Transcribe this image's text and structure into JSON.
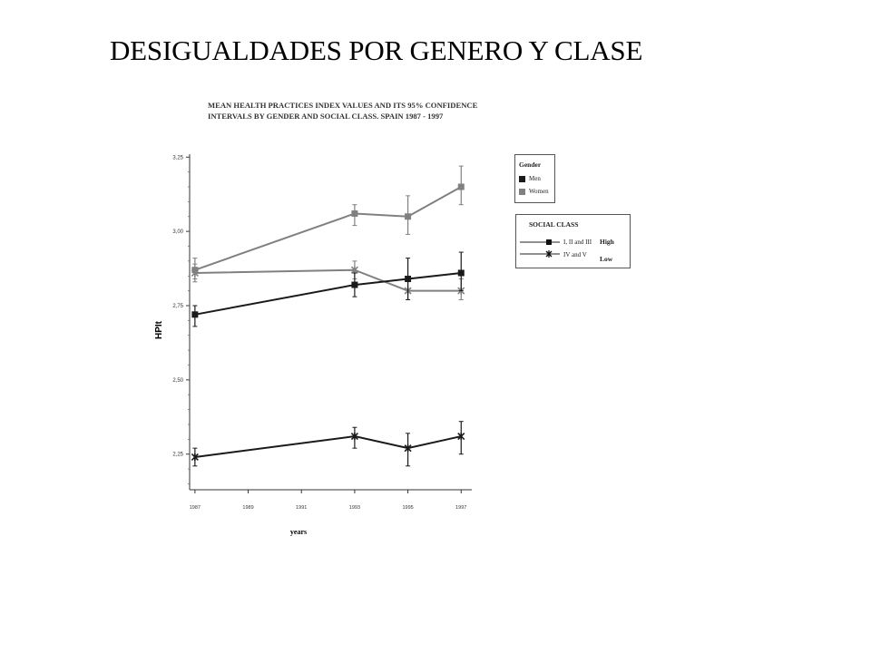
{
  "slide": {
    "title": "DESIGUALDADES POR GENERO Y CLASE"
  },
  "chart_data": {
    "type": "line",
    "title": "MEAN HEALTH PRACTICES INDEX VALUES AND ITS 95% CONFIDENCE INTERVALS BY GENDER AND SOCIAL CLASS. SPAIN 1987 - 1997",
    "xlabel": "years",
    "ylabel": "HPIt",
    "x_ticks": [
      "1987",
      "1989",
      "1991",
      "1993",
      "1995",
      "1997"
    ],
    "y_ticks": [
      "2,25",
      "2,50",
      "2,75",
      "3,00",
      "3,25"
    ],
    "ylim": [
      2.13,
      3.26
    ],
    "grid": false,
    "series": [
      {
        "gender": "Women",
        "social_class": "I, II and III",
        "color": "#808080",
        "marker": "square",
        "x": [
          1987,
          1993,
          1995,
          1997
        ],
        "y": [
          2.87,
          3.06,
          3.05,
          3.15
        ],
        "ci_low": [
          2.83,
          3.02,
          2.99,
          3.09
        ],
        "ci_high": [
          2.91,
          3.09,
          3.12,
          3.22
        ]
      },
      {
        "gender": "Women",
        "social_class": "IV and V",
        "color": "#808080",
        "marker": "star",
        "x": [
          1987,
          1993,
          1995,
          1997
        ],
        "y": [
          2.86,
          2.87,
          2.8,
          2.8
        ],
        "ci_low": [
          2.84,
          2.84,
          2.77,
          2.77
        ],
        "ci_high": [
          2.89,
          2.9,
          2.84,
          2.84
        ]
      },
      {
        "gender": "Men",
        "social_class": "I, II and III",
        "color": "#1a1a1a",
        "marker": "square",
        "x": [
          1987,
          1993,
          1995,
          1997
        ],
        "y": [
          2.72,
          2.82,
          2.84,
          2.86
        ],
        "ci_low": [
          2.68,
          2.78,
          2.77,
          2.8
        ],
        "ci_high": [
          2.75,
          2.86,
          2.91,
          2.93
        ]
      },
      {
        "gender": "Men",
        "social_class": "IV and V",
        "color": "#1a1a1a",
        "marker": "star",
        "x": [
          1987,
          1993,
          1995,
          1997
        ],
        "y": [
          2.24,
          2.31,
          2.27,
          2.31
        ],
        "ci_low": [
          2.21,
          2.27,
          2.21,
          2.25
        ],
        "ci_high": [
          2.27,
          2.34,
          2.32,
          2.36
        ]
      }
    ],
    "legend_gender": {
      "title": "Gender",
      "items": [
        {
          "label": "Men",
          "color": "#1a1a1a"
        },
        {
          "label": "Women",
          "color": "#808080"
        }
      ]
    },
    "legend_class": {
      "title": "SOCIAL CLASS",
      "items": [
        {
          "label": "I, II and III",
          "marker": "square",
          "side": "High"
        },
        {
          "label": "IV and V",
          "marker": "star",
          "side": "Low"
        }
      ]
    },
    "legend_placement": "right"
  }
}
